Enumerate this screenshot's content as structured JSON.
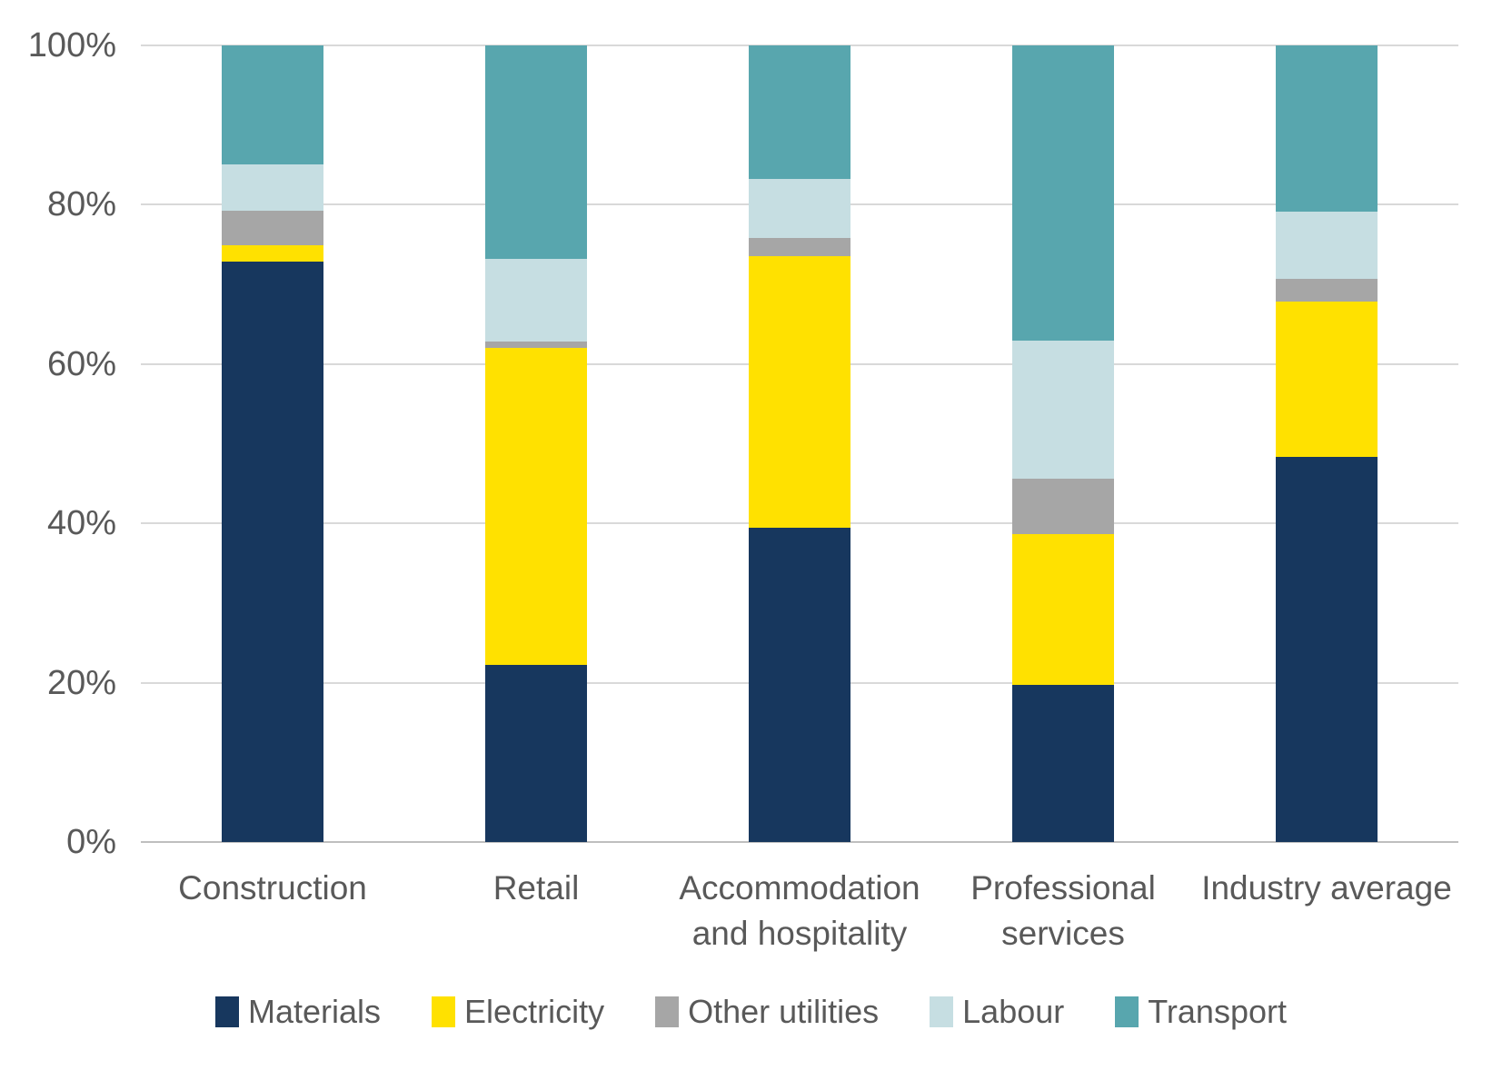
{
  "chart_data": {
    "type": "bar",
    "variant": "stacked-100-percent-column",
    "title": "",
    "xlabel": "",
    "ylabel": "",
    "grid": true,
    "categories": [
      "Construction",
      "Retail",
      "Accommodation and hospitality",
      "Professional services",
      "Industry average"
    ],
    "series": [
      {
        "name": "Materials",
        "color": "#17375E",
        "values": [
          72.9,
          22.2,
          39.4,
          19.7,
          48.4
        ]
      },
      {
        "name": "Electricity",
        "color": "#FFE100",
        "values": [
          2.0,
          39.8,
          34.1,
          18.9,
          19.5
        ]
      },
      {
        "name": "Other utilities",
        "color": "#A6A6A6",
        "values": [
          4.3,
          0.8,
          2.3,
          7.0,
          2.8
        ]
      },
      {
        "name": "Labour",
        "color": "#C6DEE2",
        "values": [
          5.9,
          10.4,
          7.5,
          17.4,
          8.4
        ]
      },
      {
        "name": "Transport",
        "color": "#58A6AE",
        "values": [
          14.9,
          26.8,
          16.7,
          37.0,
          20.9
        ]
      }
    ],
    "y_axis": {
      "min": 0,
      "max": 100,
      "tick_interval": 20,
      "tick_labels": [
        "0%",
        "20%",
        "40%",
        "60%",
        "80%",
        "100%"
      ]
    },
    "legend": {
      "position": "bottom",
      "items": [
        "Materials",
        "Electricity",
        "Other utilities",
        "Labour",
        "Transport"
      ]
    }
  },
  "style": {
    "gridline_color": "#d9d9d9",
    "axis_line_color": "#bfbfbf",
    "text_color": "#595959",
    "background": "#ffffff"
  }
}
